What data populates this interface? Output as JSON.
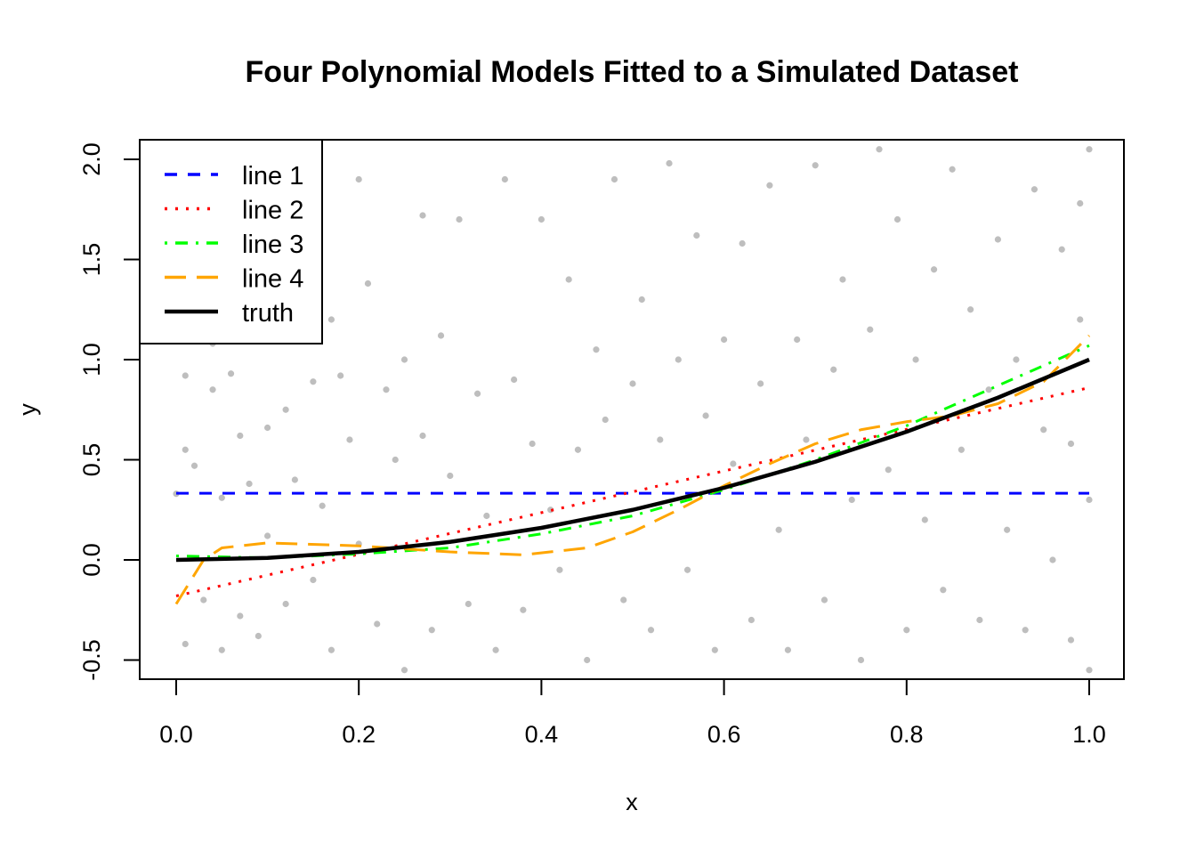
{
  "chart_data": {
    "type": "line",
    "title": "Four Polynomial Models Fitted to a Simulated Dataset",
    "xlabel": "x",
    "ylabel": "y",
    "xlim": [
      -0.04,
      1.04
    ],
    "ylim": [
      -0.6,
      2.1
    ],
    "xticks": [
      "0.0",
      "0.2",
      "0.4",
      "0.6",
      "0.8",
      "1.0"
    ],
    "yticks": [
      "-0.5",
      "0.0",
      "0.5",
      "1.0",
      "1.5",
      "2.0"
    ],
    "grid": false,
    "legend_position": "top-left",
    "points_color": "#bebebe",
    "points": [
      [
        0.0,
        0.33
      ],
      [
        0.01,
        0.92
      ],
      [
        0.01,
        0.55
      ],
      [
        0.01,
        -0.42
      ],
      [
        0.02,
        0.47
      ],
      [
        0.03,
        -0.2
      ],
      [
        0.03,
        1.25
      ],
      [
        0.04,
        1.08
      ],
      [
        0.04,
        0.85
      ],
      [
        0.05,
        -0.45
      ],
      [
        0.05,
        0.31
      ],
      [
        0.06,
        0.93
      ],
      [
        0.07,
        0.62
      ],
      [
        0.07,
        -0.28
      ],
      [
        0.08,
        1.6
      ],
      [
        0.08,
        0.38
      ],
      [
        0.09,
        -0.38
      ],
      [
        0.1,
        0.66
      ],
      [
        0.1,
        0.12
      ],
      [
        0.11,
        1.1
      ],
      [
        0.12,
        0.75
      ],
      [
        0.12,
        -0.22
      ],
      [
        0.13,
        0.4
      ],
      [
        0.14,
        1.72
      ],
      [
        0.15,
        0.89
      ],
      [
        0.15,
        -0.1
      ],
      [
        0.16,
        0.27
      ],
      [
        0.17,
        1.2
      ],
      [
        0.17,
        -0.45
      ],
      [
        0.18,
        0.92
      ],
      [
        0.19,
        0.6
      ],
      [
        0.2,
        1.9
      ],
      [
        0.2,
        0.08
      ],
      [
        0.21,
        1.38
      ],
      [
        0.22,
        -0.32
      ],
      [
        0.23,
        0.85
      ],
      [
        0.24,
        0.5
      ],
      [
        0.25,
        1.0
      ],
      [
        0.25,
        -0.55
      ],
      [
        0.27,
        1.72
      ],
      [
        0.27,
        0.62
      ],
      [
        0.28,
        -0.35
      ],
      [
        0.29,
        1.12
      ],
      [
        0.3,
        0.42
      ],
      [
        0.31,
        1.7
      ],
      [
        0.32,
        -0.22
      ],
      [
        0.33,
        0.83
      ],
      [
        0.34,
        0.22
      ],
      [
        0.35,
        -0.45
      ],
      [
        0.36,
        1.9
      ],
      [
        0.37,
        0.9
      ],
      [
        0.38,
        -0.25
      ],
      [
        0.39,
        0.58
      ],
      [
        0.4,
        1.7
      ],
      [
        0.41,
        0.25
      ],
      [
        0.42,
        -0.05
      ],
      [
        0.43,
        1.4
      ],
      [
        0.44,
        0.55
      ],
      [
        0.45,
        -0.5
      ],
      [
        0.46,
        1.05
      ],
      [
        0.47,
        0.7
      ],
      [
        0.48,
        1.9
      ],
      [
        0.49,
        -0.2
      ],
      [
        0.5,
        0.88
      ],
      [
        0.51,
        1.3
      ],
      [
        0.52,
        -0.35
      ],
      [
        0.53,
        0.6
      ],
      [
        0.54,
        1.98
      ],
      [
        0.55,
        1.0
      ],
      [
        0.56,
        -0.05
      ],
      [
        0.57,
        1.62
      ],
      [
        0.58,
        0.72
      ],
      [
        0.59,
        -0.45
      ],
      [
        0.6,
        1.1
      ],
      [
        0.61,
        0.48
      ],
      [
        0.62,
        1.58
      ],
      [
        0.63,
        -0.3
      ],
      [
        0.64,
        0.88
      ],
      [
        0.65,
        1.87
      ],
      [
        0.66,
        0.15
      ],
      [
        0.67,
        -0.45
      ],
      [
        0.68,
        1.1
      ],
      [
        0.69,
        0.6
      ],
      [
        0.7,
        1.97
      ],
      [
        0.71,
        -0.2
      ],
      [
        0.72,
        0.95
      ],
      [
        0.73,
        1.4
      ],
      [
        0.74,
        0.3
      ],
      [
        0.75,
        -0.5
      ],
      [
        0.76,
        1.15
      ],
      [
        0.77,
        2.05
      ],
      [
        0.78,
        0.45
      ],
      [
        0.79,
        1.7
      ],
      [
        0.8,
        -0.35
      ],
      [
        0.81,
        1.0
      ],
      [
        0.82,
        0.2
      ],
      [
        0.83,
        1.45
      ],
      [
        0.84,
        -0.15
      ],
      [
        0.85,
        1.95
      ],
      [
        0.86,
        0.55
      ],
      [
        0.87,
        1.25
      ],
      [
        0.88,
        -0.3
      ],
      [
        0.89,
        0.85
      ],
      [
        0.9,
        1.6
      ],
      [
        0.91,
        0.15
      ],
      [
        0.92,
        1.0
      ],
      [
        0.93,
        -0.35
      ],
      [
        0.94,
        1.85
      ],
      [
        0.95,
        0.65
      ],
      [
        0.96,
        0.0
      ],
      [
        0.97,
        1.55
      ],
      [
        0.98,
        0.58
      ],
      [
        0.98,
        -0.4
      ],
      [
        0.99,
        1.78
      ],
      [
        0.99,
        1.2
      ],
      [
        1.0,
        2.05
      ],
      [
        1.0,
        0.3
      ],
      [
        1.0,
        -0.55
      ]
    ],
    "series": [
      {
        "name": "line 1",
        "color": "#0000ff",
        "dash": "dashed",
        "x": [
          0.0,
          1.0
        ],
        "y": [
          0.333,
          0.333
        ]
      },
      {
        "name": "line 2",
        "color": "#ff0000",
        "dash": "dotted",
        "x": [
          0.0,
          1.0
        ],
        "y": [
          -0.18,
          0.86
        ]
      },
      {
        "name": "line 3",
        "color": "#00ff00",
        "dash": "dotdash",
        "x": [
          0.0,
          0.1,
          0.2,
          0.3,
          0.4,
          0.5,
          0.6,
          0.7,
          0.8,
          0.9,
          1.0
        ],
        "y": [
          0.02,
          0.01,
          0.03,
          0.06,
          0.13,
          0.22,
          0.35,
          0.5,
          0.67,
          0.87,
          1.07
        ]
      },
      {
        "name": "line 4",
        "color": "#ffa500",
        "dash": "longdash",
        "x": [
          0.0,
          0.03,
          0.05,
          0.1,
          0.2,
          0.3,
          0.38,
          0.45,
          0.5,
          0.55,
          0.6,
          0.65,
          0.7,
          0.75,
          0.8,
          0.85,
          0.9,
          0.95,
          1.0
        ],
        "y": [
          -0.22,
          0.0,
          0.06,
          0.085,
          0.07,
          0.04,
          0.025,
          0.06,
          0.14,
          0.25,
          0.37,
          0.48,
          0.58,
          0.65,
          0.69,
          0.72,
          0.78,
          0.89,
          1.12
        ]
      },
      {
        "name": "truth",
        "color": "#000000",
        "dash": "solid",
        "x": [
          0.0,
          0.1,
          0.2,
          0.3,
          0.4,
          0.5,
          0.6,
          0.7,
          0.8,
          0.9,
          1.0
        ],
        "y": [
          0.0,
          0.01,
          0.04,
          0.09,
          0.16,
          0.25,
          0.36,
          0.49,
          0.64,
          0.81,
          1.0
        ]
      }
    ]
  }
}
